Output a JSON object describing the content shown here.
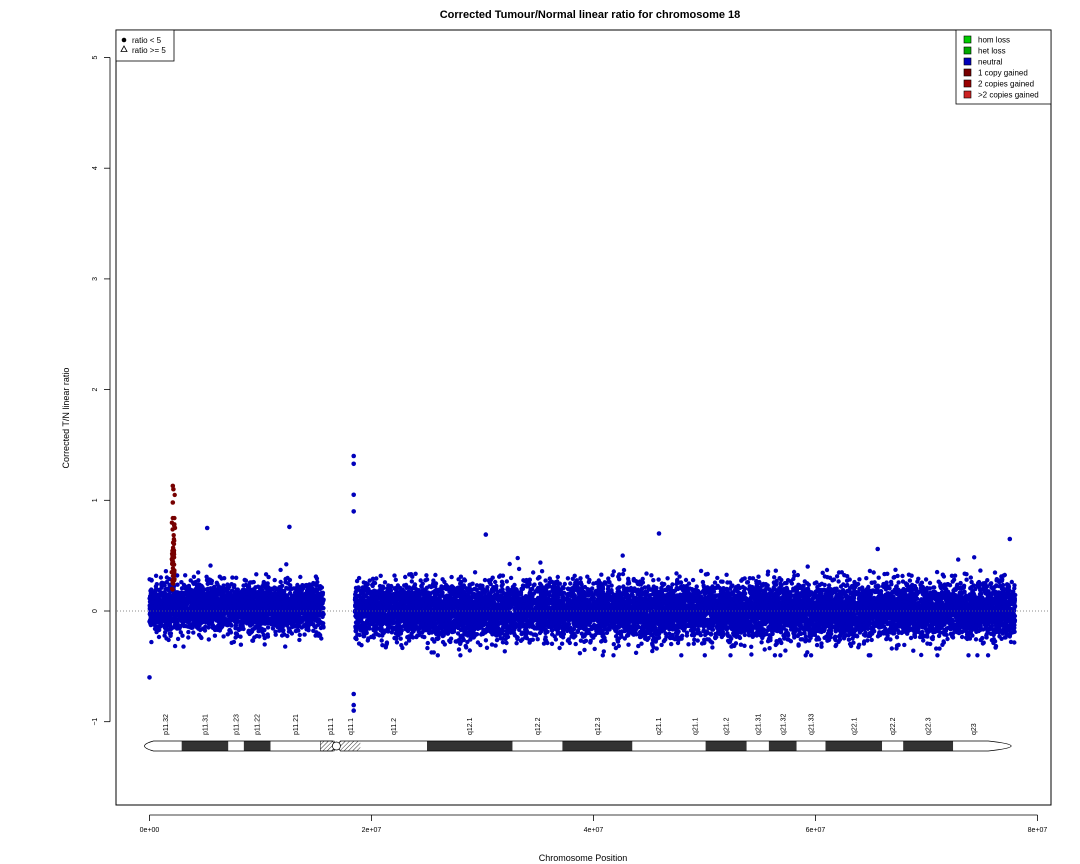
{
  "chart_data": {
    "type": "scatter",
    "title": "Corrected Tumour/Normal linear ratio for chromosome  18",
    "xlabel": "Chromosome Position",
    "ylabel": "Corrected T/N linear ratio",
    "xlim": [
      -1500000,
      80000000
    ],
    "ylim": [
      -1.75,
      5.3
    ],
    "x_ticks": [
      {
        "value": 0,
        "label": "0e+00"
      },
      {
        "value": 20000000,
        "label": "2e+07"
      },
      {
        "value": 40000000,
        "label": "4e+07"
      },
      {
        "value": 60000000,
        "label": "6e+07"
      },
      {
        "value": 80000000,
        "label": "8e+07"
      }
    ],
    "y_ticks": [
      {
        "value": -1,
        "label": "−1"
      },
      {
        "value": 0,
        "label": "0"
      },
      {
        "value": 1,
        "label": "1"
      },
      {
        "value": 2,
        "label": "2"
      },
      {
        "value": 3,
        "label": "3"
      },
      {
        "value": 4,
        "label": "4"
      },
      {
        "value": 5,
        "label": "5"
      }
    ],
    "reference_line": 0,
    "marker_legend": [
      {
        "label": "ratio < 5",
        "marker": "filled-circle"
      },
      {
        "label": "ratio >= 5",
        "marker": "open-triangle"
      }
    ],
    "legend": [
      {
        "label": "hom loss",
        "color": "#00cc00"
      },
      {
        "label": "het loss",
        "color": "#00aa00"
      },
      {
        "label": "neutral",
        "color": "#0000bb"
      },
      {
        "label": "1 copy gained",
        "color": "#770000"
      },
      {
        "label": "2 copies gained",
        "color": "#990000"
      },
      {
        "label": ">2 copies gained",
        "color": "#cc2222"
      }
    ],
    "series": [
      {
        "name": "neutral",
        "color": "#0000bb",
        "marker": "filled-circle",
        "segments": [
          {
            "x": [
              0,
              15700000
            ],
            "center": 0.03,
            "spread": 0.22
          },
          {
            "x": [
              18500000,
              78000000
            ],
            "center": 0.0,
            "spread": 0.25
          }
        ],
        "outliers": [
          {
            "x": 18400000,
            "y": 1.4
          },
          {
            "x": 18400000,
            "y": 1.33
          },
          {
            "x": 18400000,
            "y": 1.05
          },
          {
            "x": 18400000,
            "y": 0.9
          },
          {
            "x": 18400000,
            "y": -0.9
          },
          {
            "x": 18400000,
            "y": -0.85
          },
          {
            "x": 18400000,
            "y": -0.75
          },
          {
            "x": 0,
            "y": -0.6
          },
          {
            "x": 5200000,
            "y": 0.75
          },
          {
            "x": 12600000,
            "y": 0.76
          },
          {
            "x": 45900000,
            "y": 0.7
          },
          {
            "x": 30300000,
            "y": 0.69
          },
          {
            "x": 77500000,
            "y": 0.65
          },
          {
            "x": 65600000,
            "y": 0.56
          }
        ]
      },
      {
        "name": "1 copy gained",
        "color": "#770000",
        "marker": "filled-circle",
        "segments": [
          {
            "x": [
              2000000,
              2300000
            ],
            "center": 0.5,
            "spread": 0.35
          }
        ],
        "outliers": [
          {
            "x": 2100000,
            "y": 1.13
          },
          {
            "x": 2150000,
            "y": 1.1
          },
          {
            "x": 2100000,
            "y": 0.98
          }
        ]
      }
    ],
    "ideogram": {
      "bands": [
        {
          "name": "p11.32",
          "start": 0,
          "end": 2900000,
          "stain": "gneg"
        },
        {
          "name": "p11.31",
          "start": 2900000,
          "end": 7100000,
          "stain": "gpos"
        },
        {
          "name": "p11.23",
          "start": 7100000,
          "end": 8500000,
          "stain": "gneg"
        },
        {
          "name": "p11.22",
          "start": 8500000,
          "end": 10900000,
          "stain": "gpos"
        },
        {
          "name": "p11.21",
          "start": 10900000,
          "end": 15400000,
          "stain": "gneg"
        },
        {
          "name": "p11.1",
          "start": 15400000,
          "end": 17200000,
          "stain": "acen"
        },
        {
          "name": "q11.1",
          "start": 17200000,
          "end": 19000000,
          "stain": "gvar"
        },
        {
          "name": "q11.2",
          "start": 19000000,
          "end": 25000000,
          "stain": "gneg"
        },
        {
          "name": "q12.1",
          "start": 25000000,
          "end": 32700000,
          "stain": "gpos"
        },
        {
          "name": "q12.2",
          "start": 32700000,
          "end": 37200000,
          "stain": "gneg"
        },
        {
          "name": "q12.3",
          "start": 37200000,
          "end": 43500000,
          "stain": "gpos"
        },
        {
          "name": "q21.1",
          "start": 43500000,
          "end": 48200000,
          "stain": "gneg"
        },
        {
          "name": "q21.1",
          "start": 48200000,
          "end": 50100000,
          "stain": "gneg"
        },
        {
          "name": "q21.2",
          "start": 50100000,
          "end": 53800000,
          "stain": "gpos"
        },
        {
          "name": "q21.31",
          "start": 53800000,
          "end": 55800000,
          "stain": "gneg"
        },
        {
          "name": "q21.32",
          "start": 55800000,
          "end": 58300000,
          "stain": "gpos"
        },
        {
          "name": "q21.33",
          "start": 58300000,
          "end": 60900000,
          "stain": "gneg"
        },
        {
          "name": "q22.1",
          "start": 60900000,
          "end": 66000000,
          "stain": "gpos"
        },
        {
          "name": "q22.2",
          "start": 66000000,
          "end": 67900000,
          "stain": "gneg"
        },
        {
          "name": "q22.3",
          "start": 67900000,
          "end": 72400000,
          "stain": "gpos"
        },
        {
          "name": "q23",
          "start": 72400000,
          "end": 76100000,
          "stain": "gneg"
        }
      ],
      "end": 76100000
    }
  }
}
